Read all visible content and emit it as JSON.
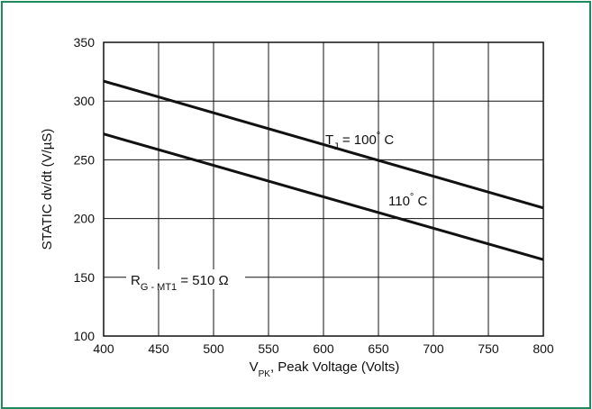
{
  "chart_data": {
    "type": "line",
    "xlabel_main": "V",
    "xlabel_sub": "PK",
    "xlabel_rest": ", Peak Voltage  (Volts)",
    "ylabel": "STATIC dv/dt (V/µS)",
    "xlim": [
      400,
      800
    ],
    "ylim": [
      100,
      350
    ],
    "x_ticks": [
      400,
      450,
      500,
      550,
      600,
      650,
      700,
      750,
      800
    ],
    "y_ticks": [
      100,
      150,
      200,
      250,
      300,
      350
    ],
    "grid": true,
    "series": [
      {
        "name": "TJ = 100° C",
        "x": [
          400,
          800
        ],
        "y": [
          317,
          209
        ]
      },
      {
        "name": "110° C",
        "x": [
          400,
          800
        ],
        "y": [
          272,
          165
        ]
      }
    ],
    "annotations": {
      "tj_main": "T",
      "tj_sub": "J",
      "tj_rest": " = 100",
      "tj_deg": "°",
      "tj_unit": " C",
      "t110_value": "110",
      "t110_deg": "°",
      "t110_unit": " C",
      "rg_main": "R",
      "rg_sub": "G - MT1",
      "rg_rest": " = 510 Ω"
    }
  }
}
